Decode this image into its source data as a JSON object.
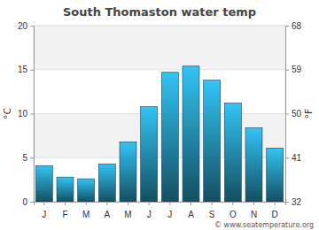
{
  "chart_data": {
    "type": "bar",
    "title": "South Thomaston water temp",
    "categories": [
      "J",
      "F",
      "M",
      "A",
      "M",
      "J",
      "J",
      "A",
      "S",
      "O",
      "N",
      "D"
    ],
    "values": [
      4.1,
      2.8,
      2.6,
      4.3,
      6.8,
      10.8,
      14.7,
      15.4,
      13.8,
      11.2,
      8.4,
      6.1
    ],
    "color": "#33c4f5",
    "y_label": "°C",
    "y2_label": "°F",
    "ylim": [
      0,
      20
    ],
    "yticks": [
      0,
      5,
      10,
      15,
      20
    ],
    "y2lim": [
      32,
      68
    ],
    "y2ticks": [
      32,
      41,
      50,
      59,
      68
    ],
    "grid": true,
    "source": "© www.seatemperature.org"
  }
}
